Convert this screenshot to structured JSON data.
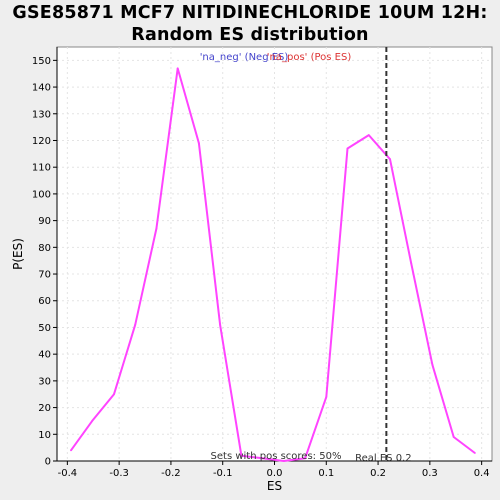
{
  "chart_data": {
    "type": "line",
    "title_line1": "GSE85871 MCF7 NITIDINECHLORIDE 10UM 12H:",
    "title_line2": "Random ES distribution",
    "xlabel": "ES",
    "ylabel": "P(ES)",
    "xlim": [
      -0.42,
      0.42
    ],
    "ylim": [
      0,
      155
    ],
    "x_ticks": [
      -0.4,
      -0.3,
      -0.2,
      -0.1,
      0.0,
      0.1,
      0.2,
      0.3,
      0.4
    ],
    "x_tick_labels": [
      "-0.4",
      "-0.3",
      "-0.2",
      "-0.1",
      "0.0",
      "0.1",
      "0.2",
      "0.3",
      "0.4"
    ],
    "y_ticks": [
      0,
      10,
      20,
      30,
      40,
      50,
      60,
      70,
      80,
      90,
      100,
      110,
      120,
      130,
      140,
      150
    ],
    "y_tick_labels": [
      "0",
      "10",
      "20",
      "30",
      "40",
      "50",
      "60",
      "70",
      "80",
      "90",
      "100",
      "110",
      "120",
      "130",
      "140",
      "150"
    ],
    "grid": true,
    "line_color": "#ff44ff",
    "series": [
      {
        "x": [
          -0.393,
          -0.352,
          -0.31,
          -0.269,
          -0.228,
          -0.187,
          -0.146,
          -0.105,
          -0.064,
          -0.023,
          0.018,
          0.059,
          0.1,
          0.141,
          0.182,
          0.223,
          0.264,
          0.305,
          0.346,
          0.387
        ],
        "values": [
          4,
          15,
          25,
          51,
          87,
          147,
          119,
          51,
          2,
          1,
          0,
          1,
          24,
          117,
          122,
          113,
          74,
          36,
          9,
          3
        ]
      }
    ],
    "legend": {
      "placement": "top-center",
      "neg_label": "'na_neg' (Neg ES)",
      "neg_color": "#4444cc",
      "pos_label": "'na_pos' (Pos ES)",
      "pos_color": "#dd3333"
    },
    "real_es": {
      "value": 0.216,
      "label": "Real ES 0.2",
      "line_color": "#333333"
    },
    "footnote": "Sets with pos scores: 50%"
  }
}
